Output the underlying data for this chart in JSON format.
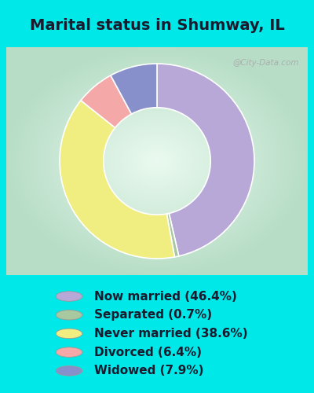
{
  "title": "Marital status in Shumway, IL",
  "slices": [
    46.4,
    0.7,
    38.6,
    6.4,
    7.9
  ],
  "labels": [
    "Now married (46.4%)",
    "Separated (0.7%)",
    "Never married (38.6%)",
    "Divorced (6.4%)",
    "Widowed (7.9%)"
  ],
  "colors": [
    "#b8a8d8",
    "#a8c8a0",
    "#f0ee80",
    "#f4a8a8",
    "#8890cc"
  ],
  "bg_outer": "#00e8e8",
  "watermark": "@City-Data.com",
  "donut_width": 0.45,
  "startangle": 90,
  "chart_bg_center": "#f0faf5",
  "chart_bg_edge": "#c0e8d0",
  "title_fontsize": 14,
  "legend_fontsize": 11
}
